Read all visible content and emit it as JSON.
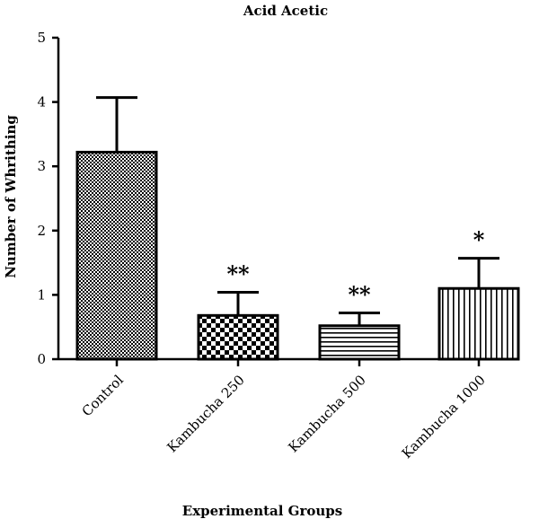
{
  "chart_data": {
    "type": "bar",
    "title": "Acid Acetic",
    "xlabel": "Experimental Groups",
    "ylabel": "Number of Whrithing",
    "ylim": [
      0,
      5
    ],
    "yticks": [
      "0",
      "1",
      "2",
      "3",
      "4",
      "5"
    ],
    "categories": [
      "Control",
      "Kambucha 250",
      "Kambucha 500",
      "Kambucha 1000"
    ],
    "values": [
      3.22,
      0.68,
      0.52,
      1.1
    ],
    "error": [
      0.85,
      0.36,
      0.2,
      0.47
    ],
    "significance": [
      "",
      "**",
      "**",
      "*"
    ],
    "patterns": [
      "fine-checker",
      "coarse-checker",
      "horizontal-lines",
      "vertical-lines"
    ],
    "grid": false,
    "legend": "none"
  }
}
